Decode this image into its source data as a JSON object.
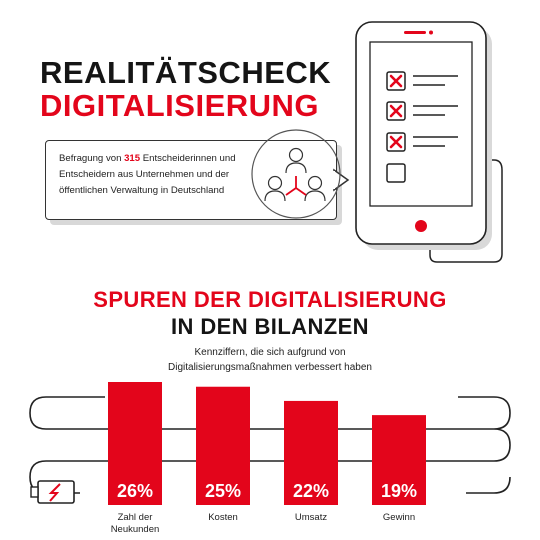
{
  "header": {
    "title_line1": "REALITÄTSCHECK",
    "title_line2": "DIGITALISIERUNG"
  },
  "info": {
    "prefix": "Befragung von ",
    "count": "315",
    "suffix": " Entscheiderinnen und Entscheidern aus Unternehmen und der öffentlichen Verwaltung in Deutschland"
  },
  "section": {
    "title_line1": "SPUREN DER DIGITALISIERUNG",
    "title_line2": "IN DEN BILANZEN",
    "description_line1": "Kennziffern, die sich aufgrund von",
    "description_line2": "Digitalisierungsmaßnahmen verbessert haben"
  },
  "icons": {
    "people": "people-network-icon",
    "phone": "smartphone-checklist-icon",
    "battery": "low-battery-icon"
  },
  "colors": {
    "accent": "#e3051b",
    "dark": "#151515",
    "bar_label": "#ffffff"
  },
  "chart_data": {
    "type": "bar",
    "title": "SPUREN DER DIGITALISIERUNG IN DEN BILANZEN",
    "subtitle": "Kennziffern, die sich aufgrund von Digitalisierungsmaßnahmen verbessert haben",
    "categories": [
      "Zahl der Neukunden",
      "Kosten",
      "Umsatz",
      "Gewinn"
    ],
    "values": [
      26,
      25,
      22,
      19
    ],
    "value_labels": [
      "26%",
      "25%",
      "22%",
      "19%"
    ],
    "unit": "%",
    "ylim": [
      0,
      26
    ],
    "grid": false,
    "legend": "none"
  }
}
